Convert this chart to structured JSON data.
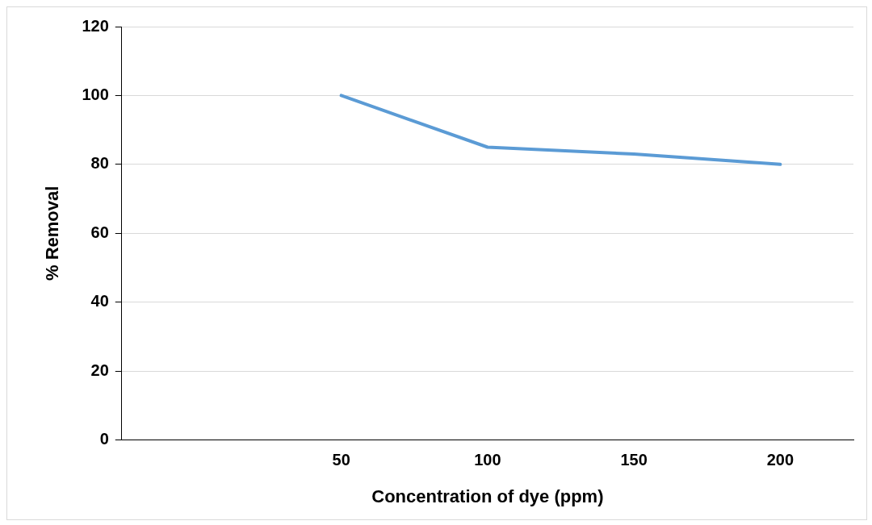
{
  "chart_data": {
    "type": "line",
    "xlabel": "Concentration of dye (ppm)",
    "ylabel": "% Removal",
    "categories": [
      null,
      "50",
      "100",
      "150",
      "200"
    ],
    "series": [
      {
        "color": "#5b9bd5",
        "values": [
          null,
          100,
          85,
          83,
          80
        ]
      }
    ],
    "ylim": [
      0,
      120
    ],
    "yticks": [
      0,
      20,
      40,
      60,
      80,
      100,
      120
    ],
    "grid": "y",
    "legend": false,
    "marker": "none",
    "line_style": "solid"
  }
}
